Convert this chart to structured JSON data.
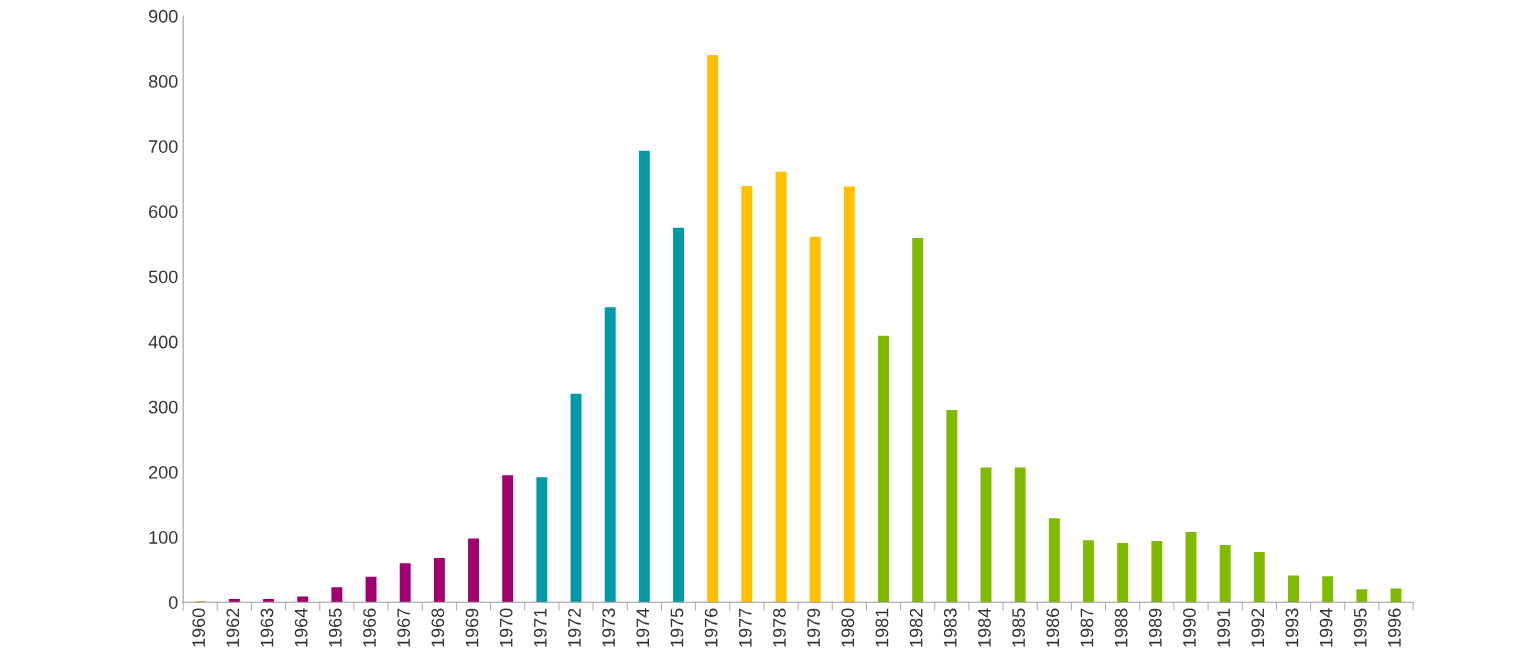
{
  "chart_data": {
    "type": "bar",
    "categories": [
      "1960",
      "1962",
      "1963",
      "1964",
      "1965",
      "1966",
      "1967",
      "1968",
      "1969",
      "1970",
      "1971",
      "1972",
      "1973",
      "1974",
      "1975",
      "1976",
      "1977",
      "1978",
      "1979",
      "1980",
      "1981",
      "1982",
      "1983",
      "1984",
      "1985",
      "1986",
      "1987",
      "1988",
      "1989",
      "1990",
      "1991",
      "1992",
      "1993",
      "1994",
      "1995",
      "1996"
    ],
    "values": [
      2,
      5,
      5,
      9,
      23,
      39,
      60,
      68,
      98,
      195,
      192,
      320,
      453,
      693,
      575,
      840,
      639,
      661,
      561,
      638,
      409,
      559,
      295,
      207,
      207,
      129,
      95,
      91,
      94,
      108,
      88,
      77,
      41,
      40,
      20,
      21
    ],
    "colors": [
      "#e0b050",
      "#a0006e",
      "#a0006e",
      "#a0006e",
      "#a0006e",
      "#a0006e",
      "#a0006e",
      "#a0006e",
      "#a0006e",
      "#a0006e",
      "#009aa6",
      "#009aa6",
      "#009aa6",
      "#009aa6",
      "#009aa6",
      "#ffc000",
      "#ffc000",
      "#ffc000",
      "#ffc000",
      "#ffc000",
      "#7fba00",
      "#7fba00",
      "#7fba00",
      "#7fba00",
      "#7fba00",
      "#7fba00",
      "#7fba00",
      "#7fba00",
      "#7fba00",
      "#7fba00",
      "#7fba00",
      "#7fba00",
      "#7fba00",
      "#7fba00",
      "#7fba00",
      "#7fba00"
    ],
    "ylim": [
      0,
      900
    ],
    "yticks": [
      0,
      100,
      200,
      300,
      400,
      500,
      600,
      700,
      800,
      900
    ],
    "grid": false,
    "legend": false
  }
}
